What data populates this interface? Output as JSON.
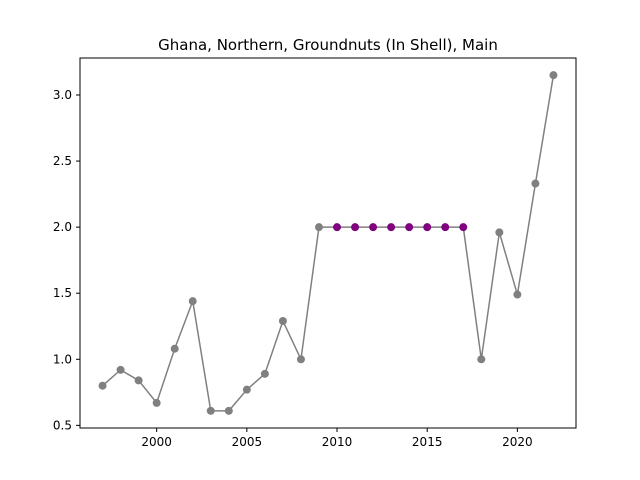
{
  "chart_data": {
    "type": "line",
    "title": "Ghana, Northern, Groundnuts (In Shell), Main",
    "xlabel": "",
    "ylabel": "",
    "xlim": [
      1995.75,
      2023.25
    ],
    "ylim": [
      0.48,
      3.28
    ],
    "x_ticks": [
      2000,
      2005,
      2010,
      2015,
      2020
    ],
    "y_ticks": [
      0.5,
      1.0,
      1.5,
      2.0,
      2.5,
      3.0
    ],
    "x_tick_labels": [
      "2000",
      "2005",
      "2010",
      "2015",
      "2020"
    ],
    "y_tick_labels": [
      "0.5",
      "1.0",
      "1.5",
      "2.0",
      "2.5",
      "3.0"
    ],
    "grid": false,
    "line_color": "#808080",
    "series": [
      {
        "x": [
          1997,
          1998,
          1999,
          2000,
          2001,
          2002,
          2003,
          2004,
          2005,
          2006,
          2007,
          2008,
          2009,
          2010,
          2011,
          2012,
          2013,
          2014,
          2015,
          2016,
          2017,
          2018,
          2019,
          2020,
          2021,
          2022
        ],
        "values": [
          0.8,
          0.92,
          0.84,
          0.67,
          1.08,
          1.44,
          0.61,
          0.61,
          0.77,
          0.89,
          1.29,
          1.0,
          2.0,
          2.0,
          2.0,
          2.0,
          2.0,
          2.0,
          2.0,
          2.0,
          2.0,
          1.0,
          1.96,
          1.49,
          2.33,
          3.15
        ],
        "point_colors": [
          "#808080",
          "#808080",
          "#808080",
          "#808080",
          "#808080",
          "#808080",
          "#808080",
          "#808080",
          "#808080",
          "#808080",
          "#808080",
          "#808080",
          "#808080",
          "#800080",
          "#800080",
          "#800080",
          "#800080",
          "#800080",
          "#800080",
          "#800080",
          "#800080",
          "#808080",
          "#808080",
          "#808080",
          "#808080",
          "#808080"
        ]
      }
    ]
  }
}
